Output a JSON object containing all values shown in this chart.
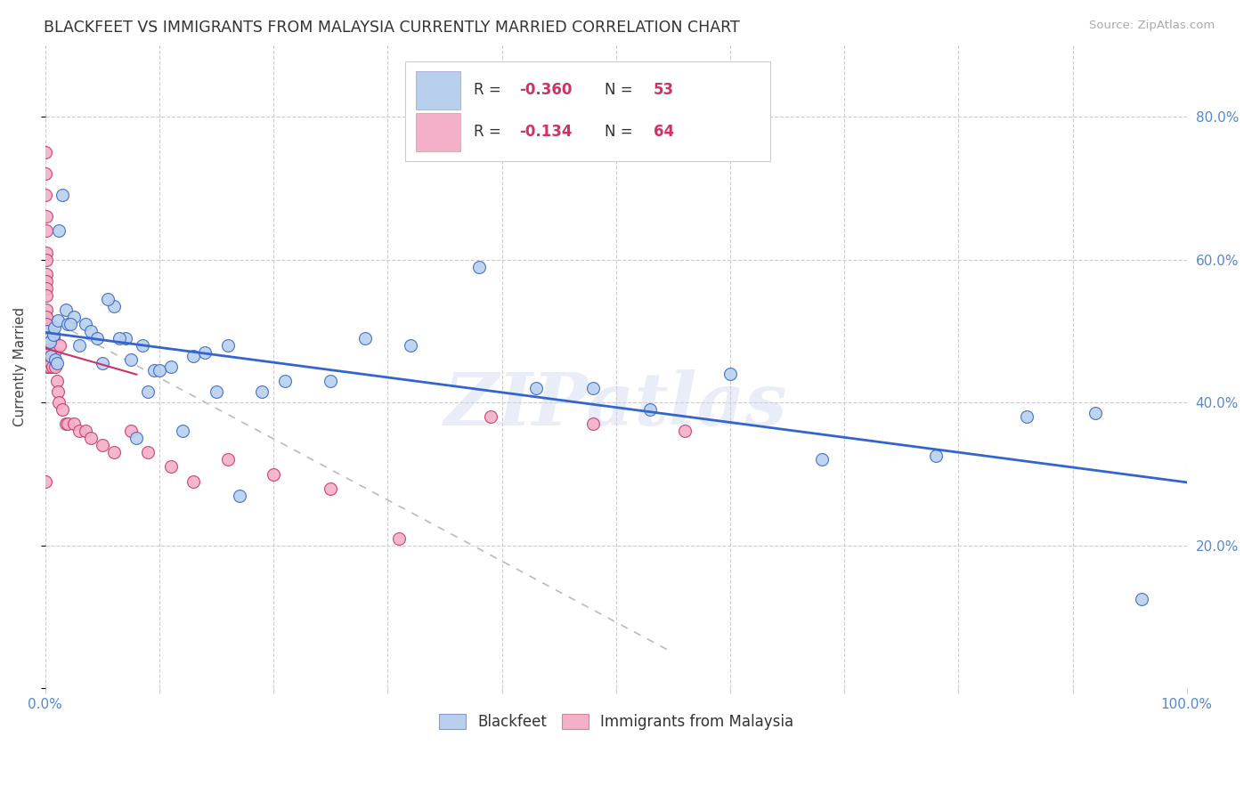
{
  "title": "BLACKFEET VS IMMIGRANTS FROM MALAYSIA CURRENTLY MARRIED CORRELATION CHART",
  "source": "Source: ZipAtlas.com",
  "ylabel": "Currently Married",
  "legend_labels": [
    "Blackfeet",
    "Immigrants from Malaysia"
  ],
  "r_blue": -0.36,
  "n_blue": 53,
  "r_pink": -0.134,
  "n_pink": 64,
  "blue_color": "#b8d0ee",
  "pink_color": "#f4b0c8",
  "trendline_blue": "#3366cc",
  "trendline_pink": "#cc3366",
  "watermark": "ZIPatlas",
  "blue_x": [
    0.001,
    0.002,
    0.003,
    0.004,
    0.005,
    0.007,
    0.008,
    0.009,
    0.01,
    0.011,
    0.012,
    0.015,
    0.018,
    0.02,
    0.025,
    0.03,
    0.035,
    0.04,
    0.045,
    0.05,
    0.06,
    0.07,
    0.075,
    0.08,
    0.09,
    0.095,
    0.1,
    0.11,
    0.12,
    0.13,
    0.15,
    0.17,
    0.19,
    0.21,
    0.25,
    0.28,
    0.32,
    0.38,
    0.43,
    0.48,
    0.53,
    0.6,
    0.68,
    0.78,
    0.86,
    0.92,
    0.96,
    0.085,
    0.055,
    0.065,
    0.022,
    0.14,
    0.16
  ],
  "blue_y": [
    0.49,
    0.5,
    0.49,
    0.485,
    0.465,
    0.495,
    0.505,
    0.46,
    0.455,
    0.515,
    0.64,
    0.69,
    0.53,
    0.51,
    0.52,
    0.48,
    0.51,
    0.5,
    0.49,
    0.455,
    0.535,
    0.49,
    0.46,
    0.35,
    0.415,
    0.445,
    0.445,
    0.45,
    0.36,
    0.465,
    0.415,
    0.27,
    0.415,
    0.43,
    0.43,
    0.49,
    0.48,
    0.59,
    0.42,
    0.42,
    0.39,
    0.44,
    0.32,
    0.325,
    0.38,
    0.385,
    0.125,
    0.48,
    0.545,
    0.49,
    0.51,
    0.47,
    0.48
  ],
  "pink_x": [
    0.0,
    0.0,
    0.0,
    0.001,
    0.001,
    0.001,
    0.001,
    0.001,
    0.001,
    0.001,
    0.001,
    0.001,
    0.001,
    0.001,
    0.001,
    0.001,
    0.002,
    0.002,
    0.002,
    0.002,
    0.002,
    0.002,
    0.002,
    0.002,
    0.002,
    0.003,
    0.003,
    0.003,
    0.003,
    0.003,
    0.004,
    0.004,
    0.004,
    0.005,
    0.005,
    0.006,
    0.007,
    0.008,
    0.009,
    0.01,
    0.011,
    0.012,
    0.013,
    0.015,
    0.018,
    0.02,
    0.025,
    0.03,
    0.035,
    0.04,
    0.05,
    0.06,
    0.075,
    0.09,
    0.11,
    0.13,
    0.16,
    0.2,
    0.25,
    0.31,
    0.39,
    0.48,
    0.56,
    0.0
  ],
  "pink_y": [
    0.75,
    0.72,
    0.69,
    0.66,
    0.64,
    0.61,
    0.6,
    0.58,
    0.57,
    0.56,
    0.55,
    0.53,
    0.52,
    0.51,
    0.5,
    0.495,
    0.49,
    0.485,
    0.48,
    0.475,
    0.47,
    0.465,
    0.46,
    0.455,
    0.45,
    0.48,
    0.47,
    0.465,
    0.46,
    0.455,
    0.45,
    0.49,
    0.47,
    0.46,
    0.455,
    0.45,
    0.49,
    0.47,
    0.45,
    0.43,
    0.415,
    0.4,
    0.48,
    0.39,
    0.37,
    0.37,
    0.37,
    0.36,
    0.36,
    0.35,
    0.34,
    0.33,
    0.36,
    0.33,
    0.31,
    0.29,
    0.32,
    0.3,
    0.28,
    0.21,
    0.38,
    0.37,
    0.36,
    0.29
  ],
  "xlim": [
    0.0,
    1.0
  ],
  "ylim": [
    0.0,
    0.9
  ],
  "xticks": [
    0.0,
    0.1,
    0.2,
    0.3,
    0.4,
    0.5,
    0.6,
    0.7,
    0.8,
    0.9,
    1.0
  ],
  "yticks": [
    0.0,
    0.2,
    0.4,
    0.6,
    0.8
  ],
  "background_color": "#ffffff",
  "grid_color": "#cccccc",
  "tick_color": "#5588cc",
  "annotation_color": "#cc3366",
  "label_color": "#5588cc"
}
